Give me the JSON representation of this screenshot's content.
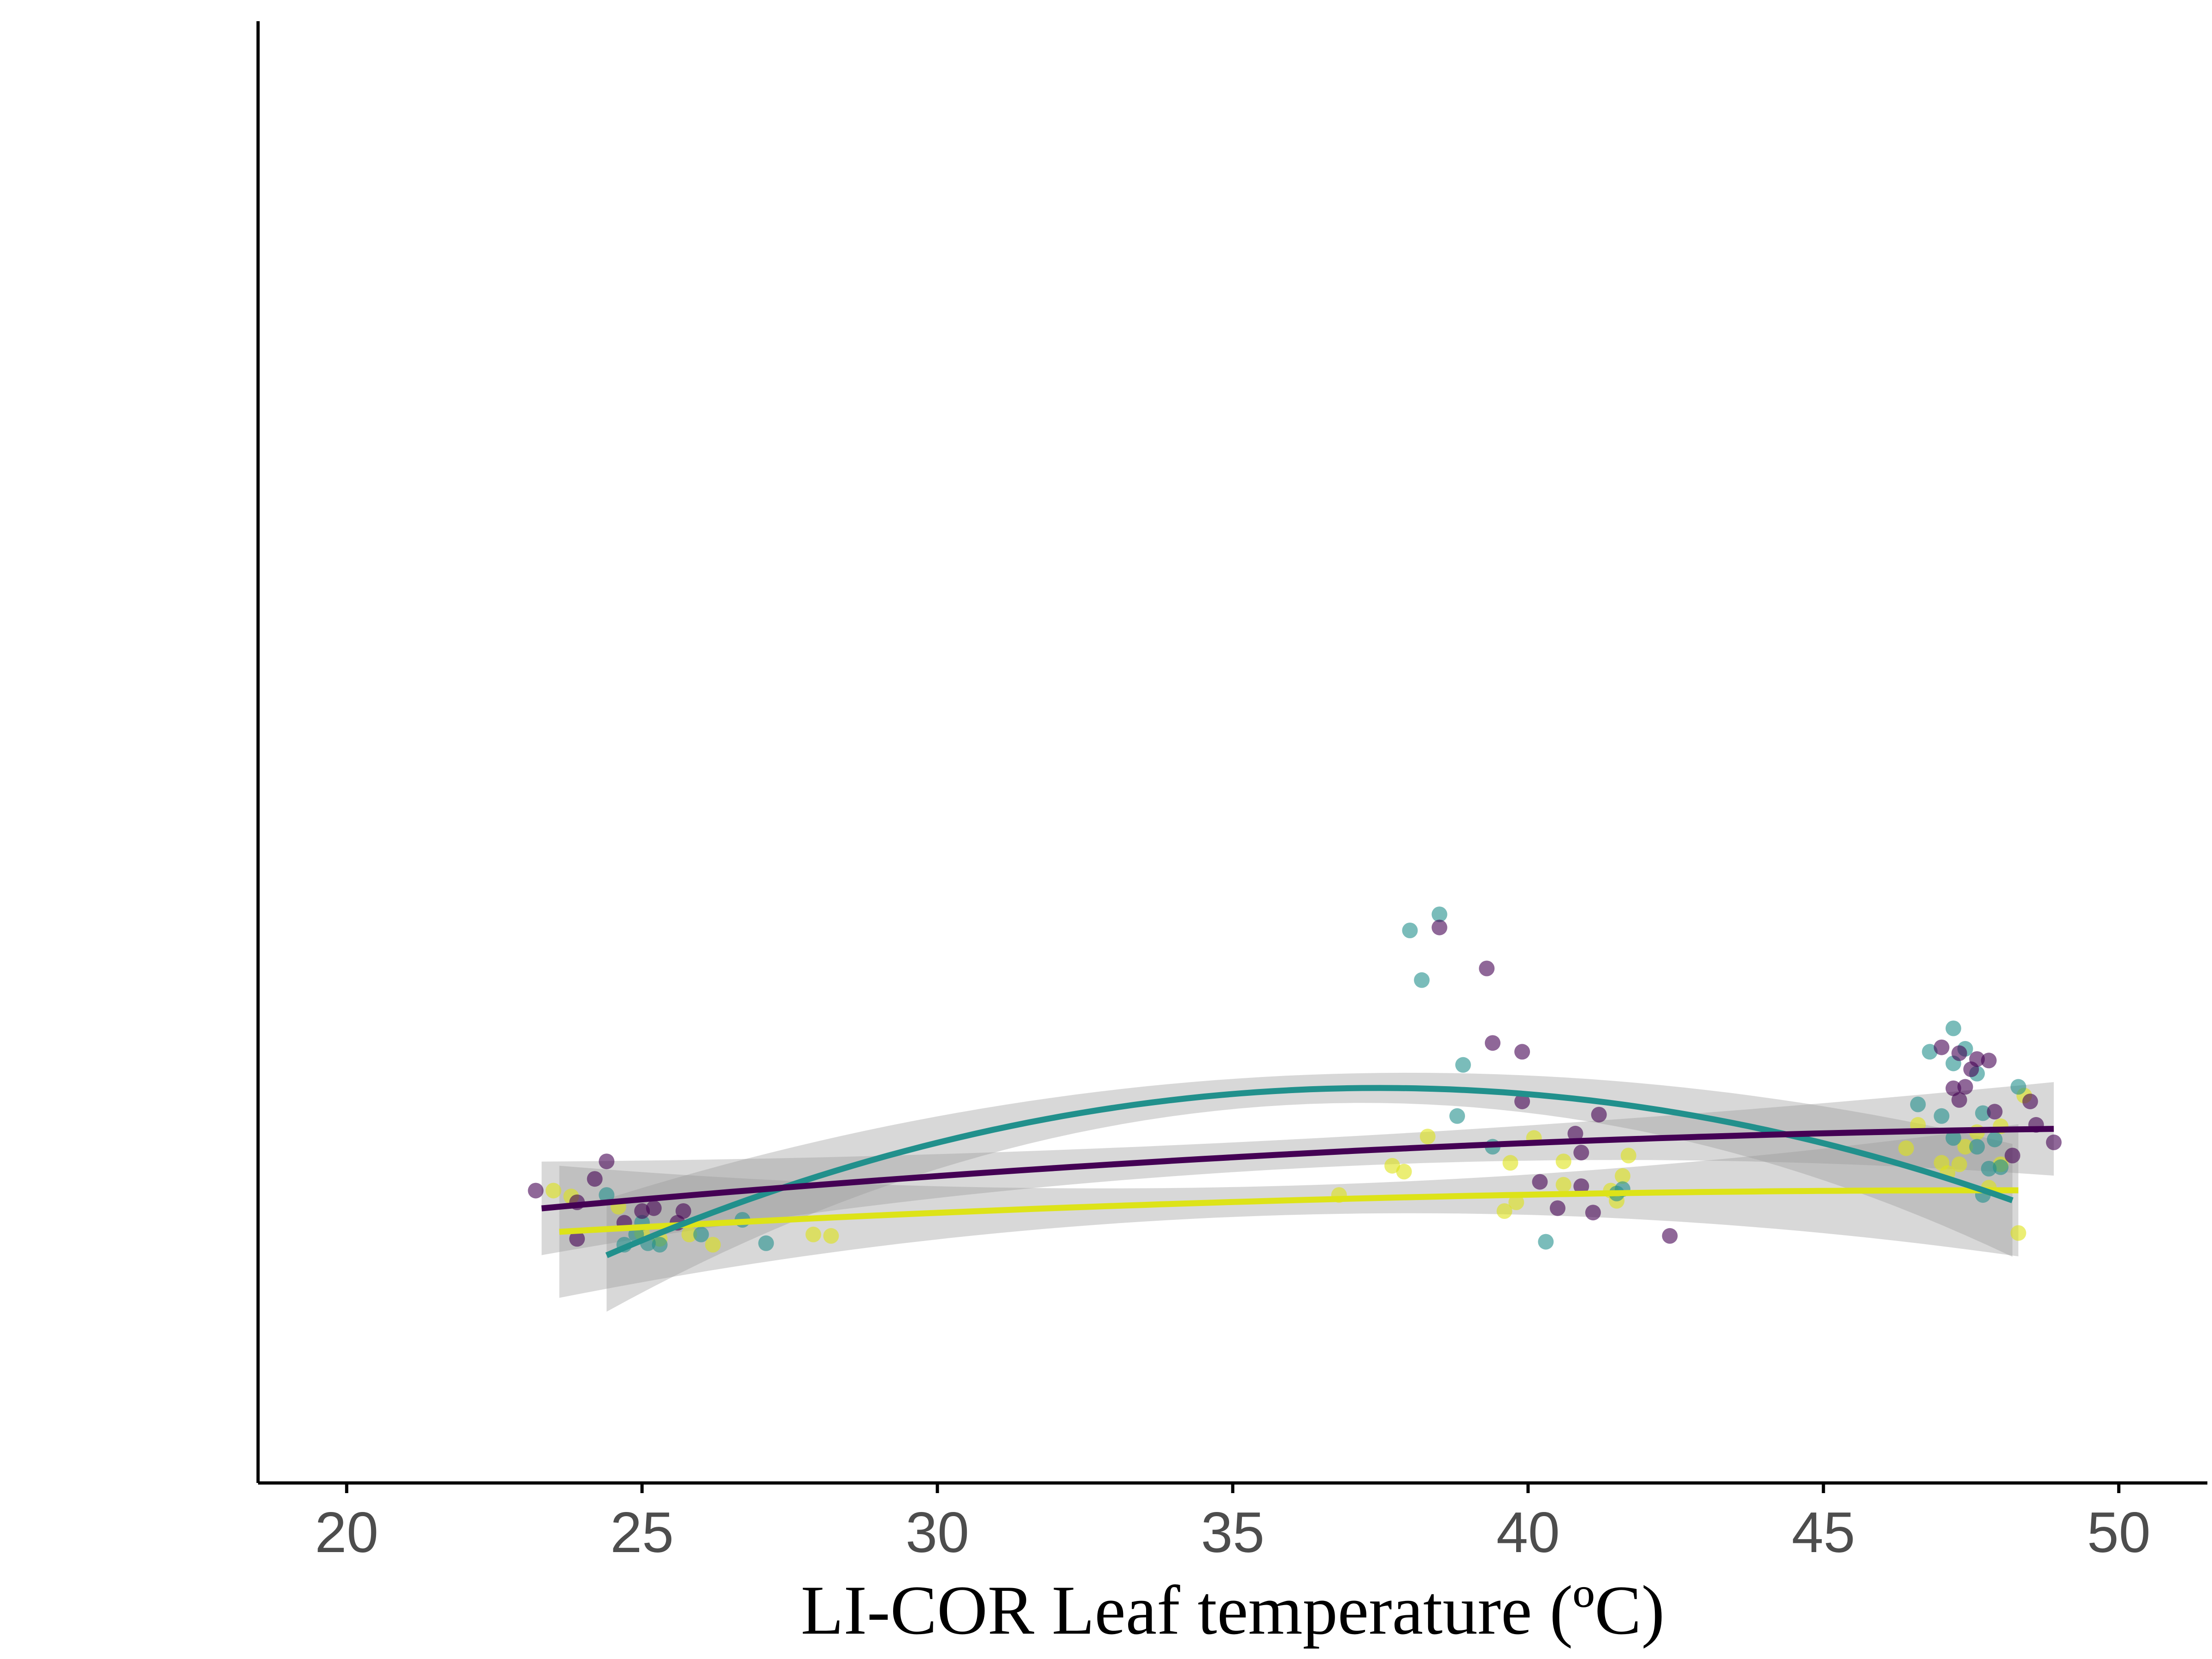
{
  "chart_data": {
    "type": "scatter",
    "xlabel": "LI-COR Leaf temperature (ºC)",
    "ylabel": "",
    "xlim": [
      18.5,
      51.5
    ],
    "ylim": [
      0,
      1
    ],
    "x_ticks": [
      "20",
      "25",
      "30",
      "35",
      "40",
      "45",
      "50"
    ],
    "x_tick_values": [
      20,
      25,
      30,
      35,
      40,
      45,
      50
    ],
    "y_ticks": [],
    "grid": false,
    "legend": "none",
    "point_alpha": 0.6,
    "series": [
      {
        "color": "#440154",
        "points": [
          [
            23.2,
            0.2
          ],
          [
            23.9,
            0.192
          ],
          [
            24.2,
            0.208
          ],
          [
            24.4,
            0.22
          ],
          [
            25.0,
            0.186
          ],
          [
            25.2,
            0.188
          ],
          [
            25.6,
            0.178
          ],
          [
            25.7,
            0.186
          ],
          [
            24.7,
            0.178
          ],
          [
            23.9,
            0.167
          ],
          [
            38.5,
            0.38
          ],
          [
            39.3,
            0.352
          ],
          [
            39.4,
            0.301
          ],
          [
            39.9,
            0.295
          ],
          [
            39.9,
            0.261
          ],
          [
            40.8,
            0.239
          ],
          [
            40.2,
            0.206
          ],
          [
            40.5,
            0.188
          ],
          [
            40.9,
            0.226
          ],
          [
            41.1,
            0.185
          ],
          [
            41.2,
            0.252
          ],
          [
            40.9,
            0.203
          ],
          [
            42.4,
            0.169
          ],
          [
            47.0,
            0.298
          ],
          [
            47.3,
            0.294
          ],
          [
            47.6,
            0.29
          ],
          [
            47.8,
            0.289
          ],
          [
            47.5,
            0.283
          ],
          [
            47.2,
            0.27
          ],
          [
            47.4,
            0.271
          ],
          [
            47.9,
            0.254
          ],
          [
            48.5,
            0.261
          ],
          [
            48.6,
            0.245
          ],
          [
            48.9,
            0.233
          ],
          [
            48.2,
            0.224
          ],
          [
            47.3,
            0.262
          ]
        ],
        "fit": {
          "x_range": [
            23.3,
            48.9
          ],
          "c0": 0.194,
          "c1": 0.0035,
          "c2": -6.2e-05
        }
      },
      {
        "color": "#21908C",
        "points": [
          [
            24.4,
            0.197
          ],
          [
            25.0,
            0.178
          ],
          [
            24.9,
            0.17
          ],
          [
            25.3,
            0.163
          ],
          [
            24.7,
            0.163
          ],
          [
            26.0,
            0.17
          ],
          [
            26.7,
            0.18
          ],
          [
            25.1,
            0.164
          ],
          [
            27.1,
            0.164
          ],
          [
            38.0,
            0.378
          ],
          [
            38.2,
            0.344
          ],
          [
            38.5,
            0.389
          ],
          [
            38.9,
            0.286
          ],
          [
            38.8,
            0.251
          ],
          [
            39.4,
            0.23
          ],
          [
            40.3,
            0.165
          ],
          [
            41.5,
            0.198
          ],
          [
            41.6,
            0.201
          ],
          [
            47.2,
            0.311
          ],
          [
            46.8,
            0.295
          ],
          [
            47.2,
            0.287
          ],
          [
            47.4,
            0.297
          ],
          [
            47.6,
            0.28
          ],
          [
            47.2,
            0.236
          ],
          [
            47.6,
            0.23
          ],
          [
            46.6,
            0.259
          ],
          [
            47.0,
            0.251
          ],
          [
            47.7,
            0.253
          ],
          [
            47.7,
            0.197
          ],
          [
            47.9,
            0.235
          ],
          [
            48.3,
            0.271
          ],
          [
            47.8,
            0.215
          ],
          [
            48.0,
            0.216
          ]
        ],
        "fit": {
          "x_range": [
            24.4,
            48.2
          ],
          "c0": 0.166,
          "c1": 0.0167,
          "c2": -0.000669
        }
      },
      {
        "color": "#DDE318",
        "points": [
          [
            23.5,
            0.2
          ],
          [
            23.8,
            0.196
          ],
          [
            24.6,
            0.189
          ],
          [
            25.0,
            0.171
          ],
          [
            25.3,
            0.167
          ],
          [
            25.8,
            0.17
          ],
          [
            26.2,
            0.163
          ],
          [
            27.9,
            0.17
          ],
          [
            28.2,
            0.169
          ],
          [
            36.8,
            0.197
          ],
          [
            37.7,
            0.217
          ],
          [
            37.9,
            0.213
          ],
          [
            38.3,
            0.237
          ],
          [
            39.6,
            0.186
          ],
          [
            39.8,
            0.192
          ],
          [
            39.7,
            0.219
          ],
          [
            40.1,
            0.236
          ],
          [
            40.6,
            0.204
          ],
          [
            40.6,
            0.22
          ],
          [
            41.4,
            0.2
          ],
          [
            41.5,
            0.193
          ],
          [
            41.6,
            0.21
          ],
          [
            41.7,
            0.224
          ],
          [
            46.4,
            0.229
          ],
          [
            46.6,
            0.245
          ],
          [
            47.0,
            0.219
          ],
          [
            47.8,
            0.202
          ],
          [
            48.0,
            0.218
          ],
          [
            48.3,
            0.171
          ],
          [
            48.0,
            0.244
          ],
          [
            47.4,
            0.23
          ],
          [
            47.6,
            0.24
          ],
          [
            48.4,
            0.265
          ],
          [
            47.1,
            0.212
          ],
          [
            47.3,
            0.218
          ]
        ],
        "fit": {
          "x_range": [
            23.6,
            48.3
          ],
          "c0": 0.175,
          "c1": 0.0022,
          "c2": -4.8e-05
        }
      }
    ]
  }
}
